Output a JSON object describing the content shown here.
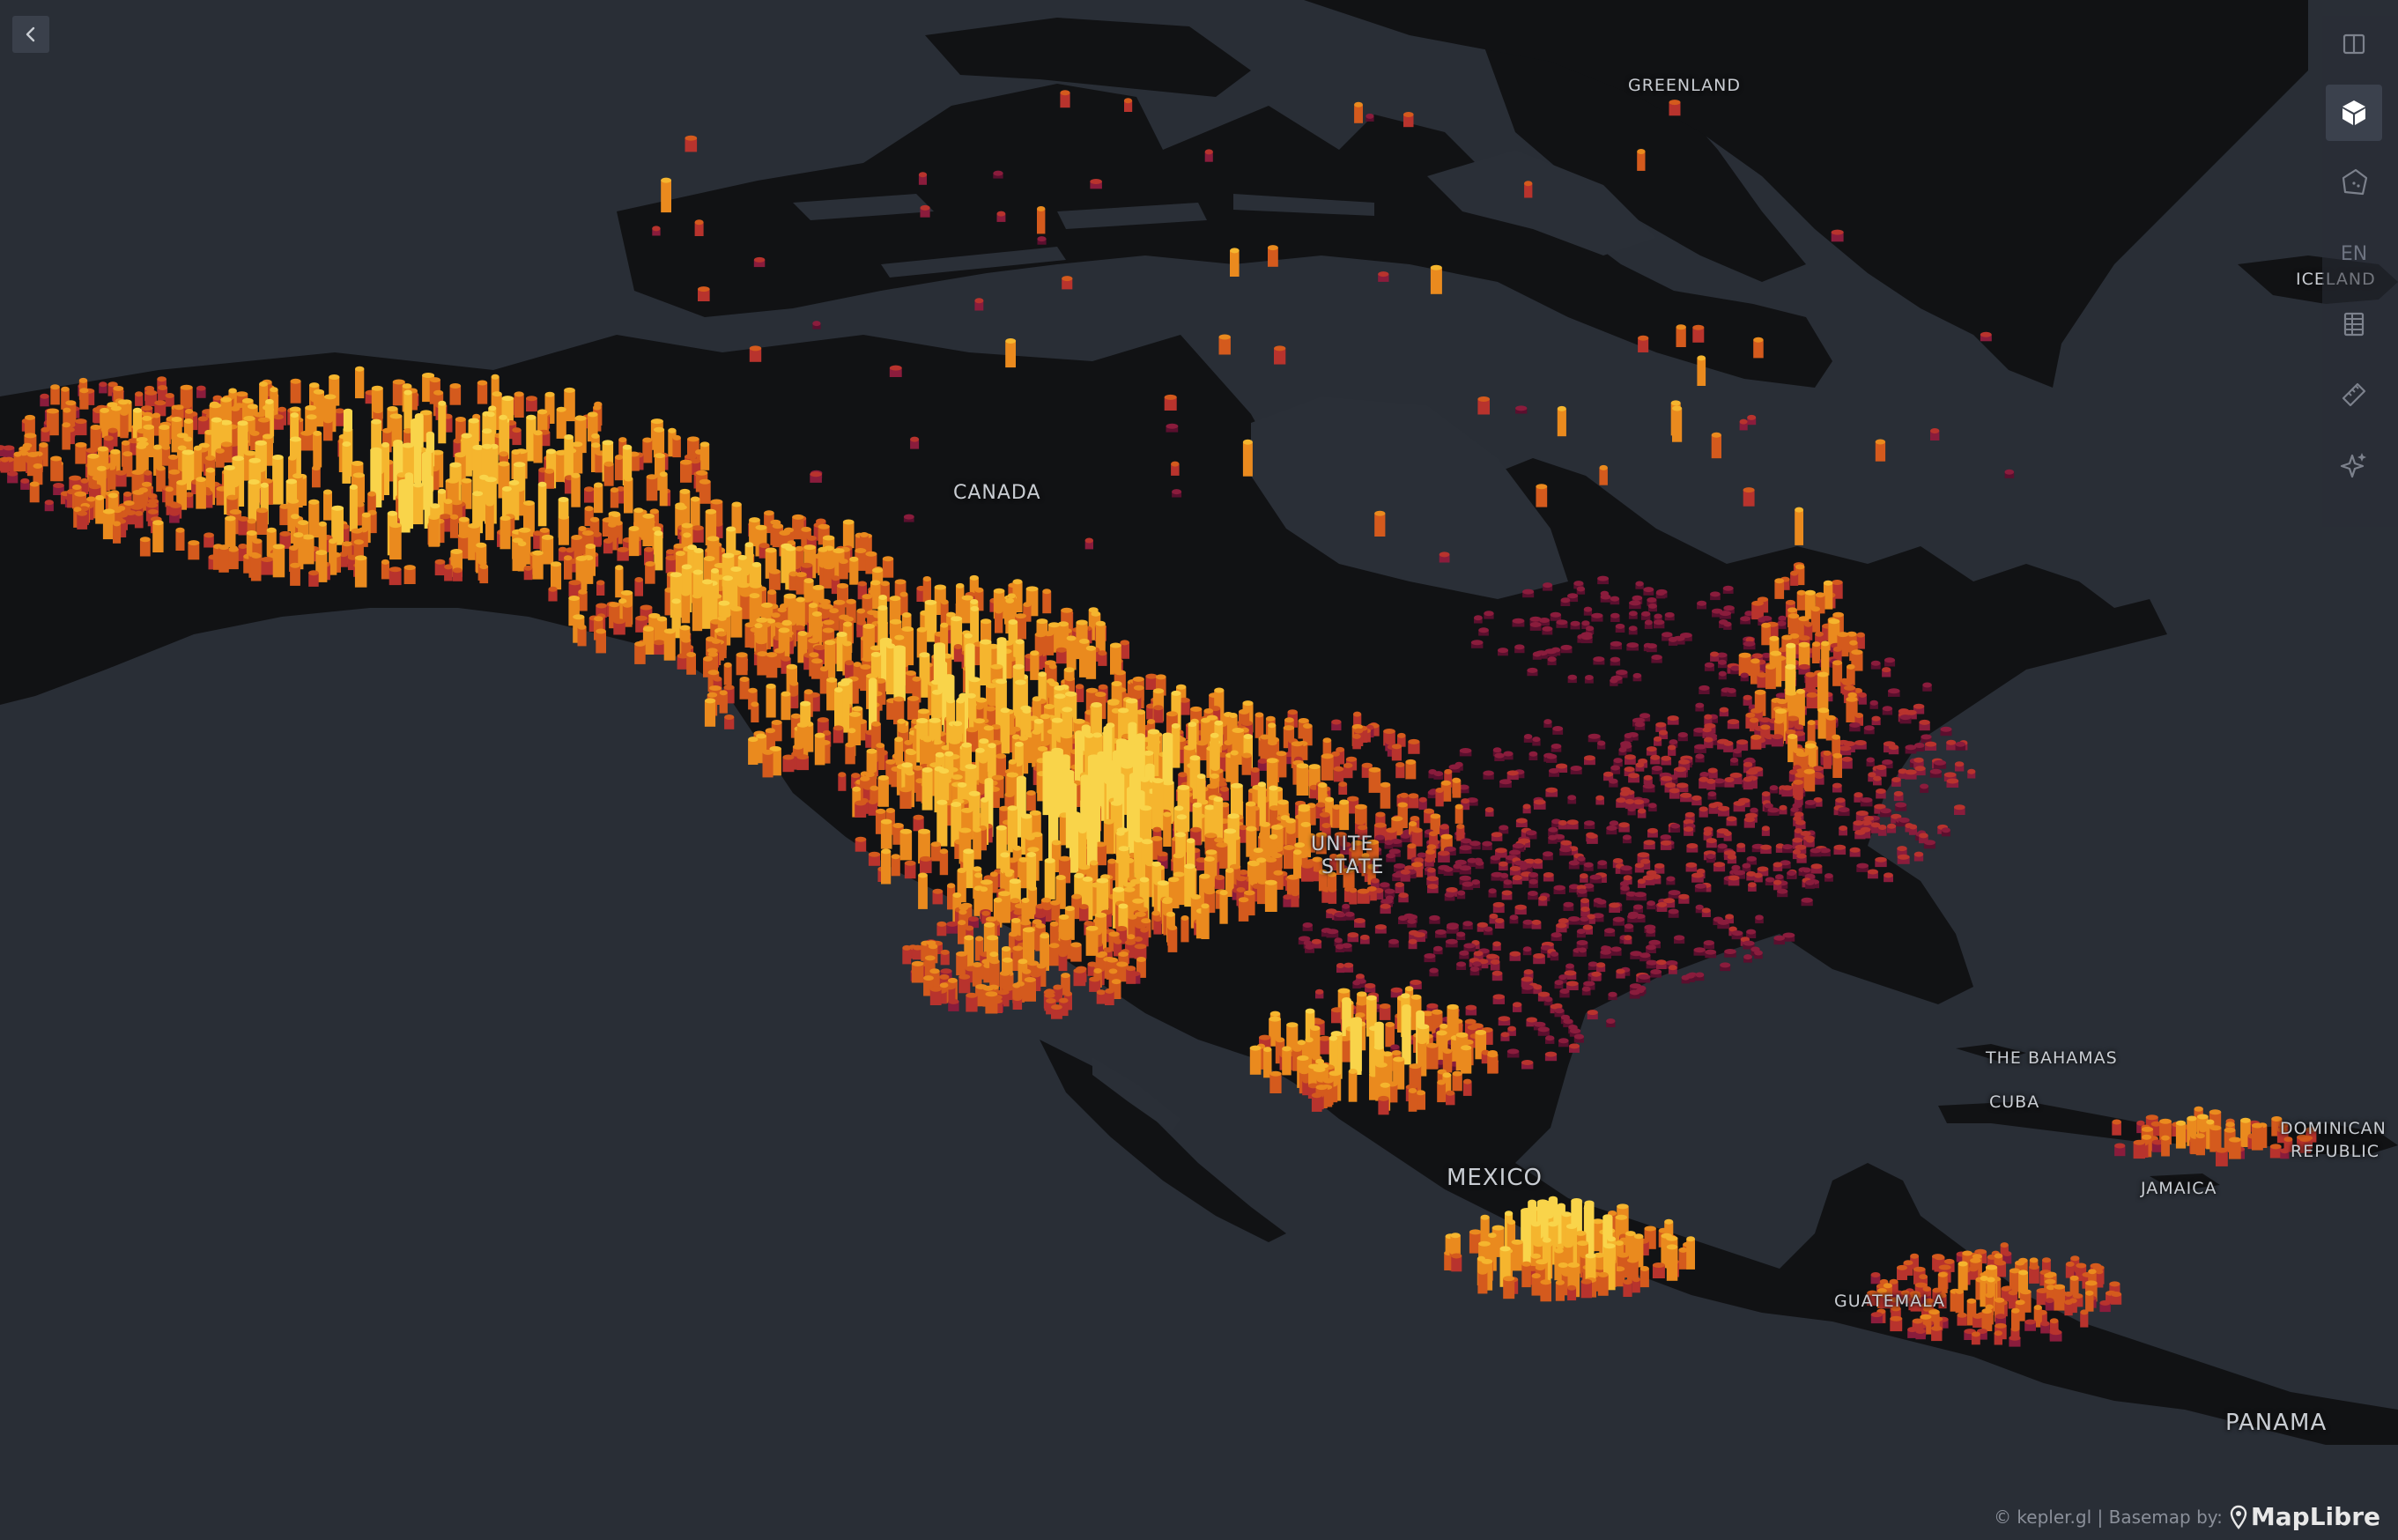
{
  "map": {
    "basemap_style": "dark",
    "colors": {
      "ocean": "#292e36",
      "land": "#111214",
      "water_inland": "#2a2f37",
      "palette": [
        "#5a0f2e",
        "#8a1c3c",
        "#b8332d",
        "#d45a1d",
        "#ea8a1e",
        "#f5b52e",
        "#f9d44a"
      ]
    },
    "labels": {
      "greenland": "GREENLAND",
      "canada": "CANADA",
      "united_states_1": "UNITE",
      "united_states_2": "STATE",
      "mexico": "MEXICO",
      "the_bahamas": "THE BAHAMAS",
      "cuba": "CUBA",
      "dominican_1": "DOMINICAN",
      "dominican_2": "REPUBLIC",
      "jamaica": "JAMAICA",
      "guatemala": "GUATEMALA",
      "panama": "PANAMA",
      "iceland": "ICELAND"
    }
  },
  "toolbar": {
    "back_icon": "chevron-left-icon",
    "items": [
      {
        "icon": "split-map-icon",
        "active": false
      },
      {
        "icon": "3d-cube-icon",
        "active": true
      },
      {
        "icon": "draw-polygon-icon",
        "active": false
      },
      {
        "label": "EN",
        "icon": "language-icon",
        "active": false
      },
      {
        "icon": "table-icon",
        "active": false
      },
      {
        "icon": "ruler-icon",
        "active": false
      },
      {
        "icon": "sparkle-icon",
        "active": false
      }
    ]
  },
  "attribution": {
    "text": "© kepler.gl | Basemap by:",
    "brand": "MapLibre"
  }
}
